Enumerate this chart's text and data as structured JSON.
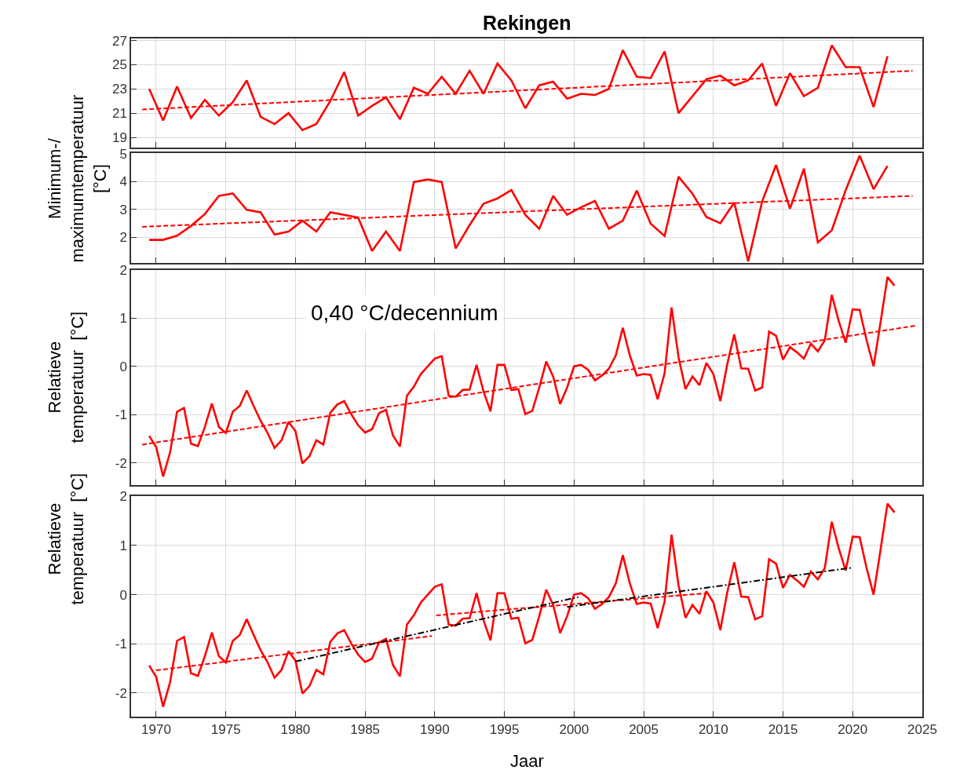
{
  "chart_data": [
    {
      "type": "line",
      "title": "Rekingen",
      "ylabel": "Minimum-/\nmaximumtemperatuur\n[°C]",
      "xlim": [
        1968.2,
        2025
      ],
      "xticks": [
        1970,
        1975,
        1980,
        1985,
        1990,
        1995,
        2000,
        2005,
        2010,
        2015,
        2020,
        2025
      ],
      "ylim": [
        18.15,
        27.17
      ],
      "yticks": [
        19,
        21,
        23,
        25,
        27
      ],
      "grid": true,
      "tick_labels": "y",
      "series": [
        {
          "color": "#ff0000",
          "line_style": "solid",
          "x": [
            1969.5,
            1970.5,
            1971.5,
            1972.5,
            1973.5,
            1974.5,
            1975.5,
            1976.5,
            1977.5,
            1978.5,
            1979.5,
            1980.5,
            1981.5,
            1982.5,
            1983.5,
            1984.5,
            1985.5,
            1986.5,
            1987.5,
            1988.5,
            1989.5,
            1990.5,
            1991.5,
            1992.5,
            1993.5,
            1994.5,
            1995.5,
            1996.5,
            1997.5,
            1998.5,
            1999.5,
            2000.5,
            2001.5,
            2002.5,
            2003.5,
            2004.5,
            2005.5,
            2006.5,
            2007.5,
            2008.5,
            2009.5,
            2010.5,
            2011.5,
            2012.5,
            2013.5,
            2014.5,
            2015.5,
            2016.5,
            2017.5,
            2018.5,
            2019.5,
            2020.5,
            2021.5,
            2022.5
          ],
          "values": [
            23.0,
            20.4,
            23.2,
            20.6,
            22.1,
            20.8,
            21.9,
            23.7,
            20.7,
            20.1,
            21.0,
            19.6,
            20.1,
            22.0,
            24.4,
            20.8,
            21.6,
            22.3,
            20.5,
            23.1,
            22.6,
            24.0,
            22.6,
            24.5,
            22.6,
            25.1,
            23.7,
            21.4,
            23.3,
            23.6,
            22.2,
            22.6,
            22.5,
            23.0,
            26.2,
            24.0,
            23.9,
            26.1,
            21.0,
            22.4,
            23.8,
            24.1,
            23.3,
            23.7,
            25.1,
            21.6,
            24.3,
            22.4,
            23.1,
            26.6,
            24.8,
            24.8,
            21.5,
            25.7
          ]
        },
        {
          "color": "#ff0000",
          "line_style": "dashed",
          "x": [
            1969,
            2024.3
          ],
          "values": [
            21.3,
            24.5
          ]
        }
      ]
    },
    {
      "type": "line",
      "xlim": [
        1968.2,
        2025
      ],
      "xticks": [
        1970,
        1975,
        1980,
        1985,
        1990,
        1995,
        2000,
        2005,
        2010,
        2015,
        2020,
        2025
      ],
      "ylim": [
        1.07,
        5.02
      ],
      "yticks": [
        2,
        3,
        4,
        5
      ],
      "grid": true,
      "tick_labels": "y",
      "series": [
        {
          "color": "#ff0000",
          "line_style": "solid",
          "x": [
            1969.5,
            1970.5,
            1971.5,
            1972.5,
            1973.5,
            1974.5,
            1975.5,
            1976.5,
            1977.5,
            1978.5,
            1979.5,
            1980.5,
            1981.5,
            1982.5,
            1983.5,
            1984.5,
            1985.5,
            1986.5,
            1987.5,
            1988.5,
            1989.5,
            1990.5,
            1991.5,
            1992.5,
            1993.5,
            1994.5,
            1995.5,
            1996.5,
            1997.5,
            1998.5,
            1999.5,
            2000.5,
            2001.5,
            2002.5,
            2003.5,
            2004.5,
            2005.5,
            2006.5,
            2007.5,
            2008.5,
            2009.5,
            2010.5,
            2011.5,
            2012.5,
            2013.5,
            2014.5,
            2015.5,
            2016.5,
            2017.5,
            2018.5,
            2019.5,
            2020.5,
            2021.5,
            2022.5
          ],
          "values": [
            1.9,
            1.9,
            2.05,
            2.4,
            2.83,
            3.48,
            3.57,
            2.98,
            2.89,
            2.09,
            2.2,
            2.59,
            2.2,
            2.89,
            2.8,
            2.7,
            1.5,
            2.2,
            1.5,
            3.98,
            4.07,
            3.98,
            1.59,
            2.43,
            3.2,
            3.39,
            3.69,
            2.8,
            2.3,
            3.48,
            2.8,
            3.07,
            3.3,
            2.3,
            2.59,
            3.67,
            2.48,
            2.04,
            4.17,
            3.56,
            2.72,
            2.5,
            3.24,
            1.13,
            3.28,
            4.59,
            3.02,
            4.46,
            1.81,
            2.24,
            3.69,
            4.93,
            3.72,
            4.56
          ]
        },
        {
          "color": "#ff0000",
          "line_style": "dashed",
          "x": [
            1969,
            2024.3
          ],
          "values": [
            2.37,
            3.48
          ]
        }
      ]
    },
    {
      "type": "line",
      "ylabel": "Relatieve\ntemperatuur  [°C]",
      "annotations": [
        "0,40 °C/decennium"
      ],
      "xlim": [
        1968.2,
        2025
      ],
      "xticks": [
        1970,
        1975,
        1980,
        1985,
        1990,
        1995,
        2000,
        2005,
        2010,
        2015,
        2020,
        2025
      ],
      "ylim": [
        -2.45,
        2.0
      ],
      "yticks": [
        -2,
        -1,
        0,
        1,
        2
      ],
      "grid": true,
      "tick_labels": "y",
      "series": [
        {
          "color": "#ff0000",
          "line_style": "solid",
          "x": [
            1969.5,
            1970,
            1970.5,
            1971,
            1971.5,
            1972,
            1972.5,
            1973,
            1973.5,
            1974,
            1974.5,
            1975,
            1975.5,
            1976,
            1976.5,
            1977,
            1977.5,
            1978,
            1978.5,
            1979,
            1979.5,
            1980,
            1980.5,
            1981,
            1981.5,
            1982,
            1982.5,
            1983,
            1983.5,
            1984,
            1984.5,
            1985,
            1985.5,
            1986,
            1986.5,
            1987,
            1987.5,
            1988,
            1988.5,
            1989,
            1989.5,
            1990,
            1990.5,
            1991,
            1991.5,
            1992,
            1992.5,
            1993,
            1993.5,
            1994,
            1994.5,
            1995,
            1995.5,
            1996,
            1996.5,
            1997,
            1997.5,
            1998,
            1998.5,
            1999,
            1999.5,
            2000,
            2000.5,
            2001,
            2001.5,
            2002,
            2002.5,
            2003,
            2003.5,
            2004,
            2004.5,
            2005,
            2005.5,
            2006,
            2006.5,
            2007,
            2007.5,
            2008,
            2008.5,
            2009,
            2009.5,
            2010,
            2010.5,
            2011,
            2011.5,
            2012,
            2012.5,
            2013,
            2013.5,
            2014,
            2014.5,
            2015,
            2015.5,
            2016,
            2016.5,
            2017,
            2017.5,
            2018,
            2018.5,
            2019,
            2019.5,
            2020,
            2020.5,
            2021,
            2021.5,
            2022,
            2022.5,
            2023
          ],
          "values": [
            -1.44,
            -1.67,
            -2.28,
            -1.78,
            -0.94,
            -0.86,
            -1.6,
            -1.65,
            -1.25,
            -0.77,
            -1.25,
            -1.38,
            -0.94,
            -0.82,
            -0.5,
            -0.82,
            -1.13,
            -1.38,
            -1.69,
            -1.53,
            -1.15,
            -1.34,
            -2.01,
            -1.86,
            -1.53,
            -1.62,
            -0.96,
            -0.79,
            -0.72,
            -0.99,
            -1.22,
            -1.37,
            -1.3,
            -0.97,
            -0.9,
            -1.43,
            -1.66,
            -0.61,
            -0.42,
            -0.16,
            0.0,
            0.16,
            0.21,
            -0.61,
            -0.63,
            -0.49,
            -0.48,
            0.03,
            -0.52,
            -0.93,
            0.03,
            0.03,
            -0.49,
            -0.47,
            -0.99,
            -0.92,
            -0.44,
            0.1,
            -0.21,
            -0.78,
            -0.44,
            0.0,
            0.03,
            -0.07,
            -0.29,
            -0.19,
            -0.05,
            0.23,
            0.8,
            0.23,
            -0.19,
            -0.16,
            -0.18,
            -0.68,
            -0.14,
            1.22,
            0.19,
            -0.47,
            -0.21,
            -0.39,
            0.07,
            -0.16,
            -0.72,
            0.05,
            0.66,
            -0.04,
            -0.05,
            -0.5,
            -0.44,
            0.72,
            0.63,
            0.14,
            0.4,
            0.29,
            0.16,
            0.47,
            0.31,
            0.54,
            1.48,
            0.94,
            0.49,
            1.18,
            1.17,
            0.54,
            0.0,
            0.91,
            1.85,
            1.67
          ]
        },
        {
          "color": "#ff0000",
          "line_style": "dashed",
          "x": [
            1969,
            2024.5
          ],
          "values": [
            -1.62,
            0.84
          ]
        }
      ]
    },
    {
      "type": "line",
      "ylabel": "Relatieve\ntemperatuur  [°C]",
      "xlabel": "Jaar",
      "xlim": [
        1968.2,
        2025
      ],
      "xticks": [
        1970,
        1975,
        1980,
        1985,
        1990,
        1995,
        2000,
        2005,
        2010,
        2015,
        2020,
        2025
      ],
      "ylim": [
        -2.48,
        2.0
      ],
      "yticks": [
        -2,
        -1,
        0,
        1,
        2
      ],
      "grid": true,
      "series": [
        {
          "color": "#ff0000",
          "line_style": "solid",
          "x": [
            1969.5,
            1970,
            1970.5,
            1971,
            1971.5,
            1972,
            1972.5,
            1973,
            1973.5,
            1974,
            1974.5,
            1975,
            1975.5,
            1976,
            1976.5,
            1977,
            1977.5,
            1978,
            1978.5,
            1979,
            1979.5,
            1980,
            1980.5,
            1981,
            1981.5,
            1982,
            1982.5,
            1983,
            1983.5,
            1984,
            1984.5,
            1985,
            1985.5,
            1986,
            1986.5,
            1987,
            1987.5,
            1988,
            1988.5,
            1989,
            1989.5,
            1990,
            1990.5,
            1991,
            1991.5,
            1992,
            1992.5,
            1993,
            1993.5,
            1994,
            1994.5,
            1995,
            1995.5,
            1996,
            1996.5,
            1997,
            1997.5,
            1998,
            1998.5,
            1999,
            1999.5,
            2000,
            2000.5,
            2001,
            2001.5,
            2002,
            2002.5,
            2003,
            2003.5,
            2004,
            2004.5,
            2005,
            2005.5,
            2006,
            2006.5,
            2007,
            2007.5,
            2008,
            2008.5,
            2009,
            2009.5,
            2010,
            2010.5,
            2011,
            2011.5,
            2012,
            2012.5,
            2013,
            2013.5,
            2014,
            2014.5,
            2015,
            2015.5,
            2016,
            2016.5,
            2017,
            2017.5,
            2018,
            2018.5,
            2019,
            2019.5,
            2020,
            2020.5,
            2021,
            2021.5,
            2022,
            2022.5,
            2023
          ],
          "values": [
            -1.44,
            -1.67,
            -2.28,
            -1.78,
            -0.94,
            -0.86,
            -1.6,
            -1.65,
            -1.25,
            -0.77,
            -1.25,
            -1.38,
            -0.94,
            -0.82,
            -0.5,
            -0.82,
            -1.13,
            -1.38,
            -1.69,
            -1.53,
            -1.15,
            -1.34,
            -2.01,
            -1.86,
            -1.53,
            -1.62,
            -0.96,
            -0.79,
            -0.72,
            -0.99,
            -1.22,
            -1.37,
            -1.3,
            -0.97,
            -0.9,
            -1.43,
            -1.66,
            -0.61,
            -0.42,
            -0.16,
            0.0,
            0.16,
            0.21,
            -0.61,
            -0.63,
            -0.49,
            -0.48,
            0.03,
            -0.52,
            -0.93,
            0.03,
            0.03,
            -0.49,
            -0.47,
            -0.99,
            -0.92,
            -0.44,
            0.1,
            -0.21,
            -0.78,
            -0.44,
            0.0,
            0.03,
            -0.07,
            -0.29,
            -0.19,
            -0.05,
            0.23,
            0.8,
            0.23,
            -0.19,
            -0.16,
            -0.18,
            -0.68,
            -0.14,
            1.22,
            0.19,
            -0.47,
            -0.21,
            -0.39,
            0.07,
            -0.16,
            -0.72,
            0.05,
            0.66,
            -0.04,
            -0.05,
            -0.5,
            -0.44,
            0.72,
            0.63,
            0.14,
            0.4,
            0.29,
            0.16,
            0.47,
            0.31,
            0.54,
            1.48,
            0.94,
            0.49,
            1.18,
            1.17,
            0.54,
            0.0,
            0.91,
            1.85,
            1.67
          ]
        },
        {
          "color": "#ff0000",
          "line_style": "dashed",
          "x": [
            1970,
            1989.8
          ],
          "values": [
            -1.54,
            -0.84
          ]
        },
        {
          "color": "#ff0000",
          "line_style": "dashed",
          "x": [
            1990.1,
            2009.6
          ],
          "values": [
            -0.42,
            0.03
          ]
        },
        {
          "color": "#000000",
          "line_style": "dashdot",
          "x": [
            1980,
            2000.3
          ],
          "values": [
            -1.36,
            -0.05
          ]
        },
        {
          "color": "#000000",
          "line_style": "dashdot",
          "x": [
            1999.5,
            2020
          ],
          "values": [
            -0.25,
            0.55
          ]
        }
      ]
    }
  ]
}
